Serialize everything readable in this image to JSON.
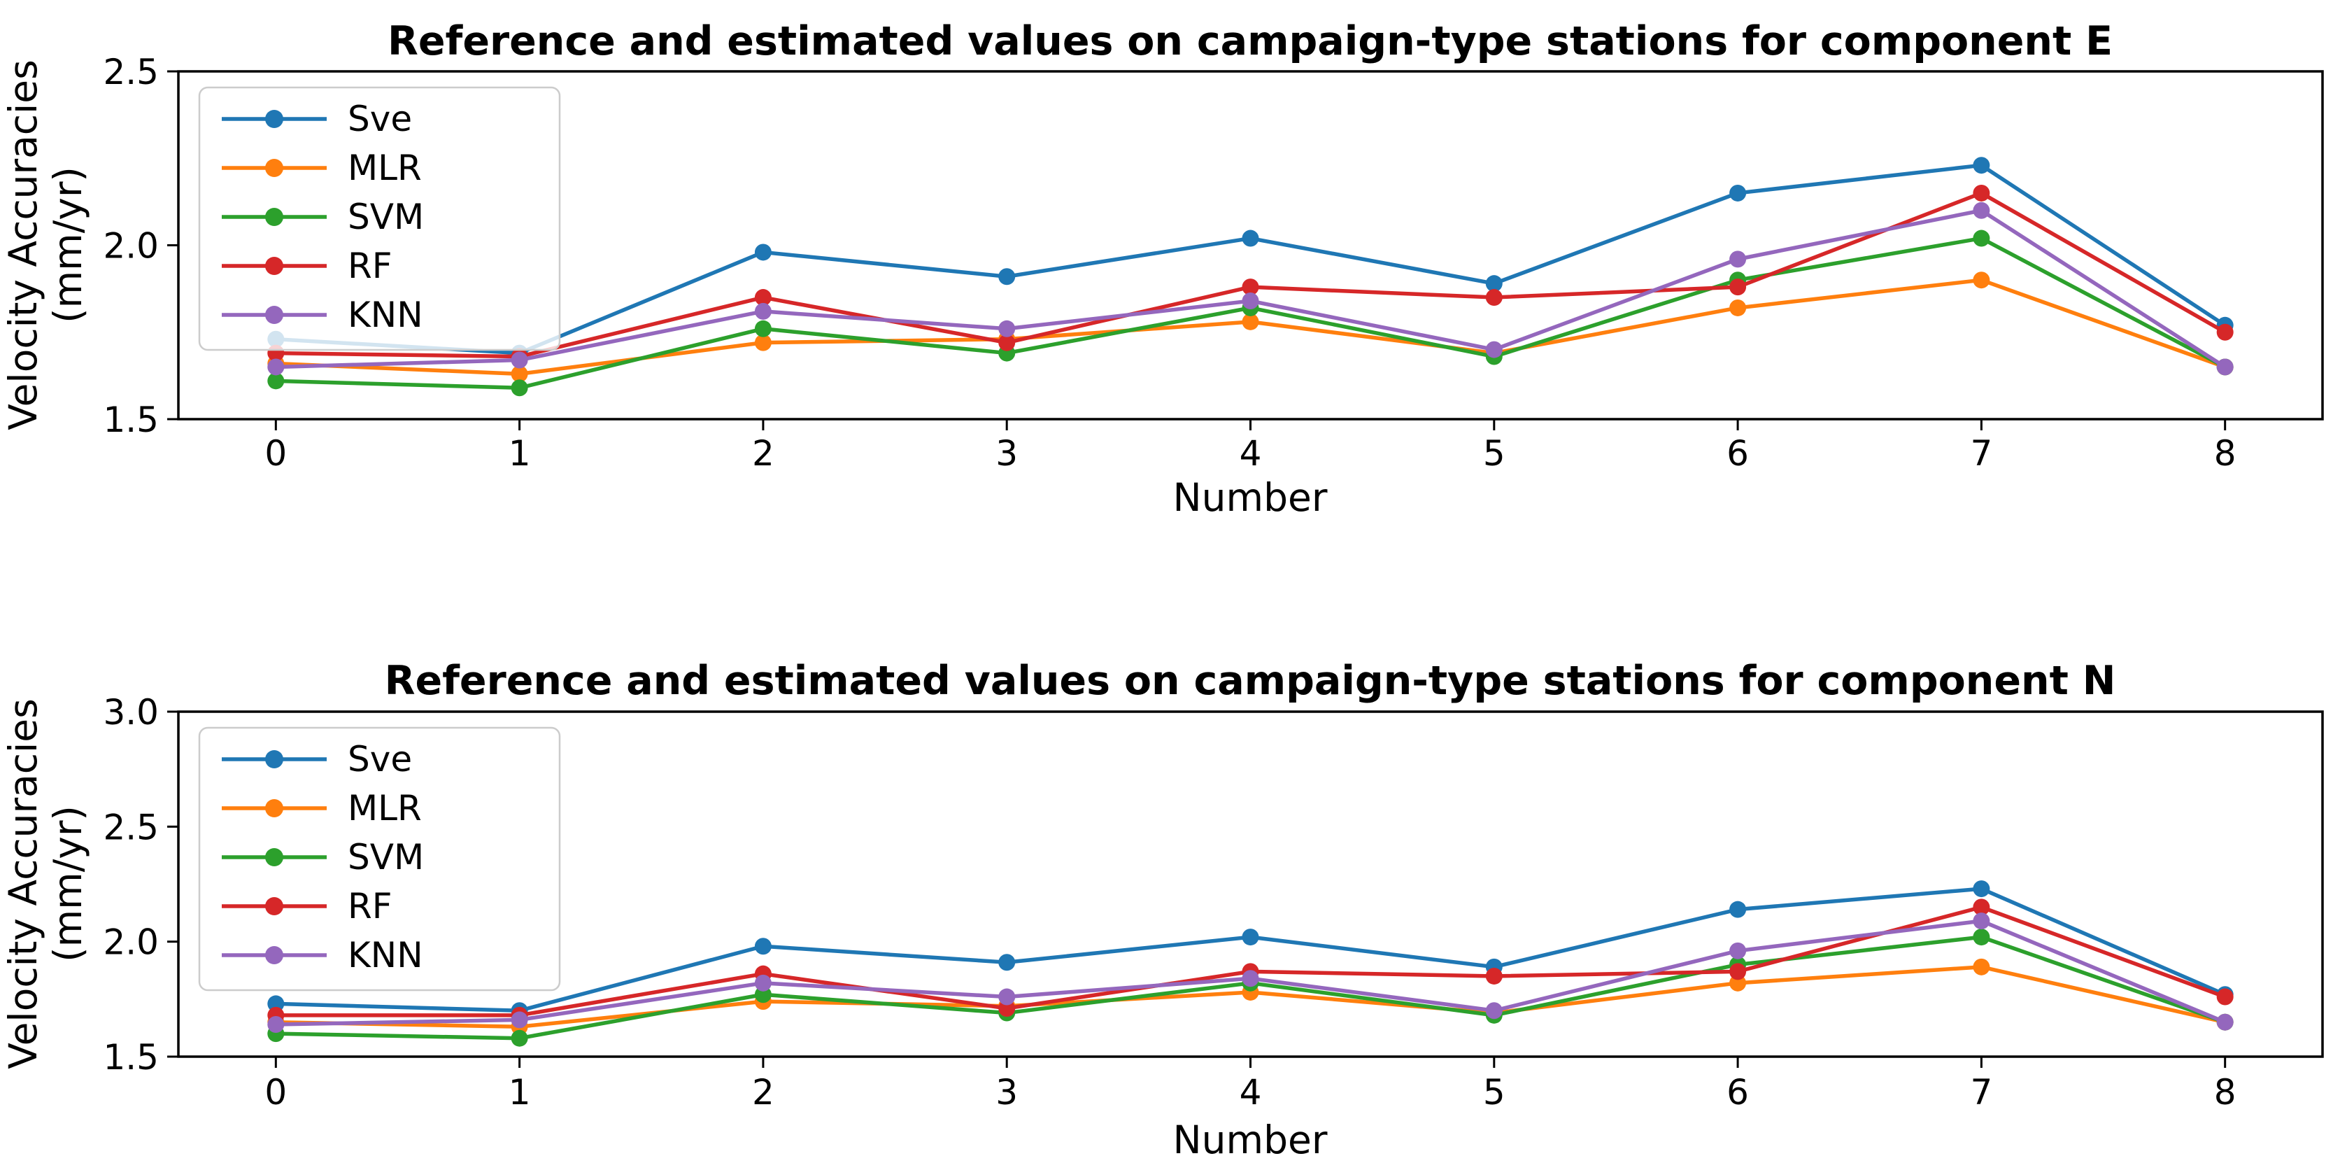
{
  "figure": {
    "background": "#ffffff",
    "axis_color": "#000000",
    "legend_border_color": "#cccccc",
    "legend_background": "rgba(255,255,255,0.8)"
  },
  "chart_data": [
    {
      "type": "line",
      "title": "Reference and estimated values on campaign-type stations for component E",
      "xlabel": "Number",
      "ylabel": "Velocity Accuracies (mm/yr)",
      "ylabel_lines": [
        "Velocity Accuracies",
        "(mm/yr)"
      ],
      "x": [
        0,
        1,
        2,
        3,
        4,
        5,
        6,
        7,
        8
      ],
      "xticks": [
        "0",
        "1",
        "2",
        "3",
        "4",
        "5",
        "6",
        "7",
        "8"
      ],
      "xlim": [
        -0.4,
        8.4
      ],
      "ylim": [
        1.5,
        2.5
      ],
      "yticks": [
        1.5,
        2.0,
        2.5
      ],
      "ytick_labels": [
        "1.5",
        "2.0",
        "2.5"
      ],
      "grid": false,
      "legend_position": "upper left",
      "series": [
        {
          "name": "Sve",
          "color": "#1f77b4",
          "values": [
            1.73,
            1.69,
            1.98,
            1.91,
            2.02,
            1.89,
            2.15,
            2.23,
            1.77
          ]
        },
        {
          "name": "MLR",
          "color": "#ff7f0e",
          "values": [
            1.66,
            1.63,
            1.72,
            1.73,
            1.78,
            1.69,
            1.82,
            1.9,
            1.65
          ]
        },
        {
          "name": "SVM",
          "color": "#2ca02c",
          "values": [
            1.61,
            1.59,
            1.76,
            1.69,
            1.82,
            1.68,
            1.9,
            2.02,
            1.65
          ]
        },
        {
          "name": "RF",
          "color": "#d62728",
          "values": [
            1.69,
            1.68,
            1.85,
            1.72,
            1.88,
            1.85,
            1.88,
            2.15,
            1.75
          ]
        },
        {
          "name": "KNN",
          "color": "#9467bd",
          "values": [
            1.65,
            1.67,
            1.81,
            1.76,
            1.84,
            1.7,
            1.96,
            2.1,
            1.65
          ]
        }
      ]
    },
    {
      "type": "line",
      "title": "Reference and estimated values on campaign-type stations for component N",
      "xlabel": "Number",
      "ylabel": "Velocity Accuracies (mm/yr)",
      "ylabel_lines": [
        "Velocity Accuracies",
        "(mm/yr)"
      ],
      "x": [
        0,
        1,
        2,
        3,
        4,
        5,
        6,
        7,
        8
      ],
      "xticks": [
        "0",
        "1",
        "2",
        "3",
        "4",
        "5",
        "6",
        "7",
        "8"
      ],
      "xlim": [
        -0.4,
        8.4
      ],
      "ylim": [
        1.5,
        3.0
      ],
      "yticks": [
        1.5,
        2.0,
        2.5,
        3.0
      ],
      "ytick_labels": [
        "1.5",
        "2.0",
        "2.5",
        "3.0"
      ],
      "grid": false,
      "legend_position": "upper left",
      "series": [
        {
          "name": "Sve",
          "color": "#1f77b4",
          "values": [
            1.73,
            1.7,
            1.98,
            1.91,
            2.02,
            1.89,
            2.14,
            2.23,
            1.77
          ]
        },
        {
          "name": "MLR",
          "color": "#ff7f0e",
          "values": [
            1.65,
            1.63,
            1.74,
            1.72,
            1.78,
            1.69,
            1.82,
            1.89,
            1.65
          ]
        },
        {
          "name": "SVM",
          "color": "#2ca02c",
          "values": [
            1.6,
            1.58,
            1.77,
            1.69,
            1.82,
            1.68,
            1.9,
            2.02,
            1.65
          ]
        },
        {
          "name": "RF",
          "color": "#d62728",
          "values": [
            1.68,
            1.68,
            1.86,
            1.71,
            1.87,
            1.85,
            1.87,
            2.15,
            1.76
          ]
        },
        {
          "name": "KNN",
          "color": "#9467bd",
          "values": [
            1.64,
            1.66,
            1.82,
            1.76,
            1.84,
            1.7,
            1.96,
            2.09,
            1.65
          ]
        }
      ]
    }
  ]
}
